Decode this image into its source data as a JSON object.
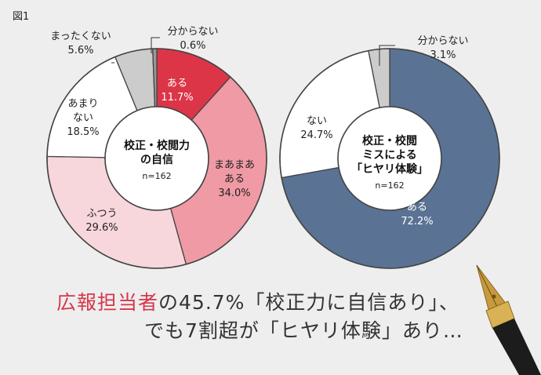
{
  "figure_label": "図1",
  "headline": {
    "highlight": "広報担当者",
    "line1_rest": "の45.7%「校正力に自信あり」、",
    "line2": "でも7割超が「ヒヤリ体験」あり…"
  },
  "chart_data": [
    {
      "type": "pie",
      "center_title_lines": [
        "校正・校閲力",
        "の自信"
      ],
      "center_n": "n=162",
      "slices": [
        {
          "label_lines": [
            "ある"
          ],
          "value": 11.7,
          "value_text": "11.7%",
          "color": "#dc3548",
          "text_color": "#ffffff"
        },
        {
          "label_lines": [
            "まあまあ",
            "ある"
          ],
          "value": 34.0,
          "value_text": "34.0%",
          "color": "#ef9aa5",
          "text_color": "#222222"
        },
        {
          "label_lines": [
            "ふつう"
          ],
          "value": 29.6,
          "value_text": "29.6%",
          "color": "#f7d6dc",
          "text_color": "#222222"
        },
        {
          "label_lines": [
            "あまり",
            "ない"
          ],
          "value": 18.5,
          "value_text": "18.5%",
          "color": "#ffffff",
          "text_color": "#222222"
        },
        {
          "label_lines": [
            "まったくない"
          ],
          "value": 5.6,
          "value_text": "5.6%",
          "color": "#cccccc",
          "text_color": "#222222"
        },
        {
          "label_lines": [
            "分からない"
          ],
          "value": 0.6,
          "value_text": "0.6%",
          "color": "#999999",
          "text_color": "#222222"
        }
      ]
    },
    {
      "type": "pie",
      "center_title_lines": [
        "校正・校閲",
        "ミスによる",
        "「ヒヤリ体験」"
      ],
      "center_n": "n=162",
      "slices": [
        {
          "label_lines": [
            "ある"
          ],
          "value": 72.2,
          "value_text": "72.2%",
          "color": "#5a7394",
          "text_color": "#ffffff"
        },
        {
          "label_lines": [
            "ない"
          ],
          "value": 24.7,
          "value_text": "24.7%",
          "color": "#ffffff",
          "text_color": "#222222"
        },
        {
          "label_lines": [
            "分からない"
          ],
          "value": 3.1,
          "value_text": "3.1%",
          "color": "#cccccc",
          "text_color": "#222222"
        }
      ]
    }
  ]
}
